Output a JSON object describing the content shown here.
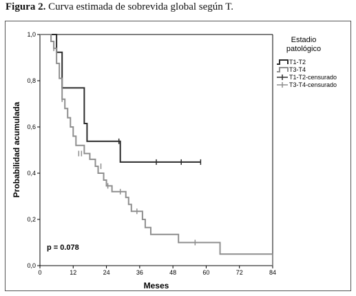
{
  "caption": {
    "bold": "Figura 2.",
    "text": "Curva estimada de sobrevida global según T."
  },
  "chart_data": {
    "type": "line",
    "subtype": "kaplan-meier step",
    "xlabel": "Meses",
    "ylabel": "Probabilidad acumulada",
    "xlim": [
      0,
      84
    ],
    "ylim": [
      0,
      1
    ],
    "xticks": [
      "0",
      "12",
      "24",
      "36",
      "48",
      "60",
      "72",
      "84"
    ],
    "yticks": [
      "0,0",
      "0,2",
      "0,4",
      "0,6",
      "0,8",
      "1,0"
    ],
    "grid": false,
    "annotation": "p = 0.078",
    "legend": {
      "title_line1": "Estadio",
      "title_line2": "patológico",
      "placement": "right",
      "entries": [
        "T1-T2",
        "T3-T4",
        "T1-T2-censurado",
        "T3-T4-censurado"
      ]
    },
    "colors": {
      "t1t2": "#2b2b2b",
      "t3t4": "#8e8e8e"
    },
    "series": [
      {
        "name": "T1-T2",
        "steps": [
          [
            0,
            1.0
          ],
          [
            6,
            0.923
          ],
          [
            8,
            0.769
          ],
          [
            16,
            0.615
          ],
          [
            17,
            0.538
          ],
          [
            29,
            0.448
          ],
          [
            58,
            0.448
          ]
        ],
        "censored": [
          [
            28.5,
            0.538
          ],
          [
            42,
            0.448
          ],
          [
            51,
            0.448
          ],
          [
            58,
            0.448
          ]
        ]
      },
      {
        "name": "T3-T4",
        "steps": [
          [
            0,
            1.0
          ],
          [
            4,
            0.97
          ],
          [
            5,
            0.94
          ],
          [
            6,
            0.875
          ],
          [
            7,
            0.81
          ],
          [
            8,
            0.72
          ],
          [
            9,
            0.68
          ],
          [
            10,
            0.64
          ],
          [
            11,
            0.6
          ],
          [
            12,
            0.56
          ],
          [
            13,
            0.52
          ],
          [
            16,
            0.485
          ],
          [
            18,
            0.46
          ],
          [
            20,
            0.43
          ],
          [
            21,
            0.4
          ],
          [
            23,
            0.37
          ],
          [
            24,
            0.345
          ],
          [
            26,
            0.32
          ],
          [
            31,
            0.295
          ],
          [
            32,
            0.265
          ],
          [
            33,
            0.235
          ],
          [
            37,
            0.2
          ],
          [
            38,
            0.165
          ],
          [
            40,
            0.135
          ],
          [
            50,
            0.1
          ],
          [
            65,
            0.05
          ],
          [
            84,
            0.0
          ]
        ],
        "censored": [
          [
            5,
            0.94
          ],
          [
            8,
            0.72
          ],
          [
            14,
            0.485
          ],
          [
            15,
            0.485
          ],
          [
            22,
            0.43
          ],
          [
            24.5,
            0.345
          ],
          [
            29,
            0.32
          ],
          [
            35,
            0.235
          ],
          [
            56,
            0.1
          ]
        ]
      }
    ]
  }
}
